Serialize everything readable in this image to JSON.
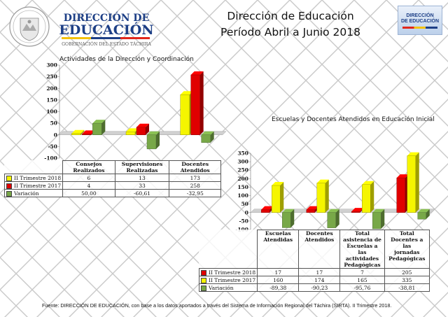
{
  "header": {
    "title_line1": "Dirección de Educación",
    "title_line2": "Período Abril a Junio 2018",
    "logo_left": {
      "line1": "DIRECCIÓN DE",
      "line2": "EDUCACIÓN",
      "line3": "GOBERNACIÓN DEL ESTADO TÁCHIRA"
    },
    "logo_right": {
      "line1": "DIRECCIÓN",
      "line2": "DE EDUCACIÓN"
    }
  },
  "chart_data": [
    {
      "type": "bar",
      "title": "Actividades de la Dirección y Coordinación",
      "categories": [
        "Consejos Realizados",
        "Supervisiones Realizadas",
        "Docentes Atendidos"
      ],
      "category_lines": [
        [
          "Consejos",
          "Realizados"
        ],
        [
          "Supervisiones",
          "Realizadas"
        ],
        [
          "Docentes",
          "Atendidos"
        ]
      ],
      "series": [
        {
          "name": "II Trimestre 2018",
          "values": [
            6,
            13,
            173
          ],
          "labels": [
            "6",
            "13",
            "173"
          ],
          "color": "#f5f500"
        },
        {
          "name": "II Trimestre 2017",
          "values": [
            4,
            33,
            258
          ],
          "labels": [
            "4",
            "33",
            "258"
          ],
          "color": "#e00000"
        },
        {
          "name": "Variación",
          "values": [
            50.0,
            -60.61,
            -32.95
          ],
          "labels": [
            "50,00",
            "-60,61",
            "-32,95"
          ],
          "color": "#78a848"
        }
      ],
      "ylim": [
        -100,
        300
      ],
      "yticks": [
        "300",
        "250",
        "200",
        "150",
        "100",
        "50",
        "0",
        "-50",
        "-100"
      ],
      "legend": "table-below"
    },
    {
      "type": "bar",
      "title": "Escuelas y Docentes Atendidos en Educación Inicial",
      "categories": [
        "Escuelas Atendidas",
        "Docentes Atendidos",
        "Total asistencia de Escuelas a las actividades Pedagógicas",
        "Total Docentes a las jornadas Pedagógicas"
      ],
      "category_lines": [
        [
          "Escuelas",
          "Atendidas"
        ],
        [
          "Docentes",
          "Atendidos"
        ],
        [
          "Total",
          "asistencia de",
          "Escuelas a las",
          "actividades",
          "Pedagógicas"
        ],
        [
          "Total",
          "Docentes a las",
          "jornadas",
          "Pedagógicas"
        ]
      ],
      "series": [
        {
          "name": "II Trimestre 2018",
          "values": [
            17,
            17,
            7,
            205
          ],
          "labels": [
            "17",
            "17",
            "7",
            "205"
          ],
          "color": "#e00000"
        },
        {
          "name": "II Trimestre 2017",
          "values": [
            160,
            174,
            165,
            335
          ],
          "labels": [
            "160",
            "174",
            "165",
            "335"
          ],
          "color": "#f5f500"
        },
        {
          "name": "Variación",
          "values": [
            -89.38,
            -90.23,
            -95.76,
            -38.81
          ],
          "labels": [
            "-89,38",
            "-90,23",
            "-95,76",
            "-38,81"
          ],
          "color": "#78a848"
        }
      ],
      "ylim": [
        -100,
        350
      ],
      "yticks": [
        "350",
        "300",
        "250",
        "200",
        "150",
        "100",
        "50",
        "0",
        "-50",
        "-100"
      ],
      "legend": "table-below"
    }
  ],
  "footer": "Fuente: DIRECCIÓN DE EDUCACIÓN, con base a  los datos aportados a través del Sistema de  Información Regional del Táchira (SIRTA). II Trimestre 2018."
}
